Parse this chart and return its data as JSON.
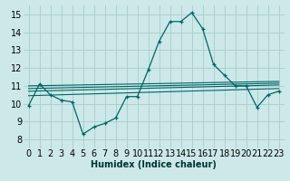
{
  "xlabel": "Humidex (Indice chaleur)",
  "background_color": "#cce8e8",
  "grid_color": "#aacccc",
  "line_color": "#006666",
  "xlim": [
    -0.5,
    23.5
  ],
  "ylim": [
    7.5,
    15.5
  ],
  "yticks": [
    8,
    9,
    10,
    11,
    12,
    13,
    14,
    15
  ],
  "xticks": [
    0,
    1,
    2,
    3,
    4,
    5,
    6,
    7,
    8,
    9,
    10,
    11,
    12,
    13,
    14,
    15,
    16,
    17,
    18,
    19,
    20,
    21,
    22,
    23
  ],
  "main_line_x": [
    0,
    1,
    2,
    3,
    4,
    5,
    6,
    7,
    8,
    9,
    10,
    11,
    12,
    13,
    14,
    15,
    16,
    17,
    18,
    19,
    20,
    21,
    22,
    23
  ],
  "main_line_y": [
    9.9,
    11.1,
    10.5,
    10.2,
    10.1,
    8.3,
    8.7,
    8.9,
    9.2,
    10.4,
    10.4,
    11.9,
    13.5,
    14.6,
    14.6,
    15.1,
    14.2,
    12.2,
    11.6,
    11.0,
    11.0,
    9.8,
    10.5,
    10.7
  ],
  "flat_lines": [
    [
      10.45,
      10.85
    ],
    [
      10.7,
      11.05
    ],
    [
      10.85,
      11.15
    ],
    [
      11.0,
      11.25
    ]
  ],
  "tick_fontsize": 7,
  "xlabel_fontsize": 7
}
